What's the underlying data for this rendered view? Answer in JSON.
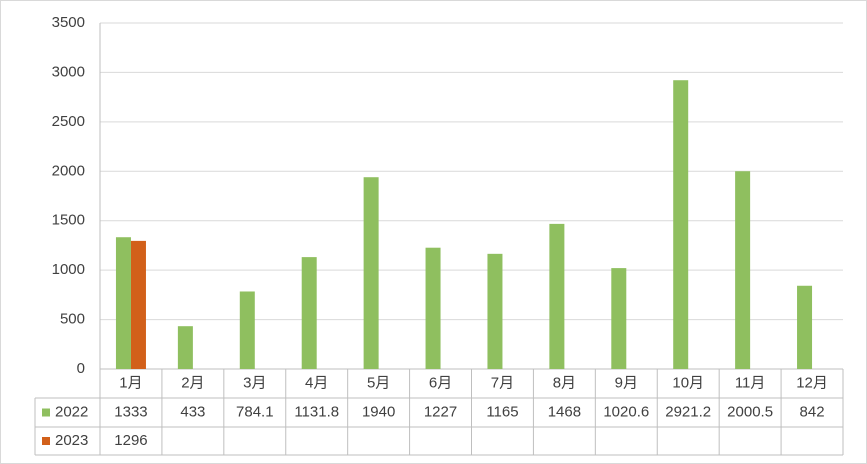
{
  "chart_data": {
    "type": "bar",
    "categories": [
      "1月",
      "2月",
      "3月",
      "4月",
      "5月",
      "6月",
      "7月",
      "8月",
      "9月",
      "10月",
      "11月",
      "12月"
    ],
    "series": [
      {
        "name": "2022",
        "color": "#8fbf5f",
        "values": [
          1333,
          433,
          784.1,
          1131.8,
          1940,
          1227,
          1165,
          1468,
          1020.6,
          2921.2,
          2000.5,
          842
        ]
      },
      {
        "name": "2023",
        "color": "#d2601a",
        "values": [
          1296,
          null,
          null,
          null,
          null,
          null,
          null,
          null,
          null,
          null,
          null,
          null
        ]
      }
    ],
    "ylim": [
      0,
      3500
    ],
    "yticks": [
      0,
      500,
      1000,
      1500,
      2000,
      2500,
      3000,
      3500
    ],
    "grid": true
  }
}
